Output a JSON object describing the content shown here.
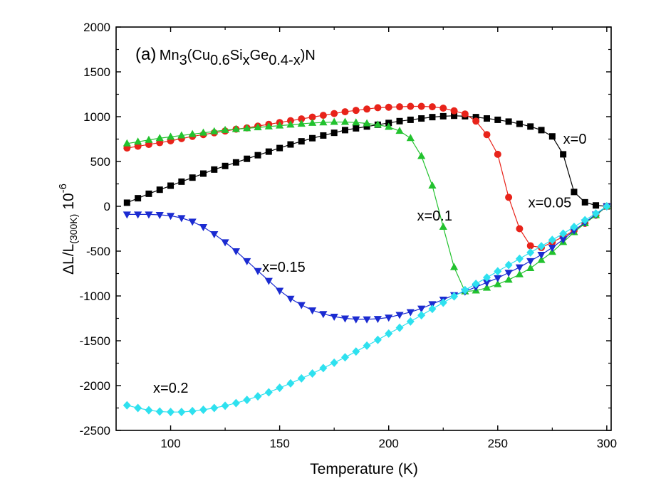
{
  "chart_data": {
    "type": "scatter",
    "title": {
      "label": "(a)",
      "formula": [
        {
          "text": "Mn",
          "shift": "none"
        },
        {
          "text": "3",
          "shift": "sub"
        },
        {
          "text": "(Cu",
          "shift": "none"
        },
        {
          "text": "0.6",
          "shift": "sub"
        },
        {
          "text": "Si",
          "shift": "none"
        },
        {
          "text": "x",
          "shift": "sub"
        },
        {
          "text": "Ge",
          "shift": "none"
        },
        {
          "text": "0.4-x",
          "shift": "sub"
        },
        {
          "text": ")N",
          "shift": "none"
        }
      ]
    },
    "xlabel": "Temperature (K)",
    "ylabel": {
      "main": "ΔL/L",
      "sub": "(300K)",
      "factor": "10",
      "exp": "-6"
    },
    "xlim": [
      75,
      302
    ],
    "ylim": [
      -2500,
      2000
    ],
    "xticks": [
      100,
      150,
      200,
      250,
      300
    ],
    "yticks": [
      -2500,
      -2000,
      -1500,
      -1000,
      -500,
      0,
      500,
      1000,
      1500,
      2000
    ],
    "grid": false,
    "series": [
      {
        "name": "x=0",
        "color": "#000000",
        "marker": "square",
        "label_at": [
          280,
          700
        ],
        "x": [
          80,
          85,
          90,
          95,
          100,
          105,
          110,
          115,
          120,
          125,
          130,
          135,
          140,
          145,
          150,
          155,
          160,
          165,
          170,
          175,
          180,
          185,
          190,
          195,
          200,
          205,
          210,
          215,
          220,
          225,
          230,
          235,
          240,
          245,
          250,
          255,
          260,
          265,
          270,
          275,
          280,
          285,
          290,
          295,
          300
        ],
        "y": [
          40,
          90,
          140,
          185,
          230,
          275,
          320,
          365,
          410,
          450,
          490,
          530,
          570,
          610,
          650,
          690,
          725,
          760,
          790,
          820,
          850,
          870,
          890,
          910,
          930,
          950,
          965,
          980,
          995,
          1005,
          1010,
          1005,
          995,
          980,
          965,
          945,
          920,
          890,
          850,
          780,
          580,
          160,
          45,
          10,
          0
        ]
      },
      {
        "name": "x=0.05",
        "color": "#e8231a",
        "marker": "circle",
        "label_at": [
          264,
          -10
        ],
        "x": [
          80,
          85,
          90,
          95,
          100,
          105,
          110,
          115,
          120,
          125,
          130,
          135,
          140,
          145,
          150,
          155,
          160,
          165,
          170,
          175,
          180,
          185,
          190,
          195,
          200,
          205,
          210,
          215,
          220,
          225,
          230,
          235,
          240,
          245,
          250,
          255,
          260,
          265,
          270,
          275,
          280,
          285,
          290,
          295,
          300
        ],
        "y": [
          650,
          670,
          690,
          710,
          730,
          755,
          780,
          800,
          820,
          840,
          860,
          875,
          895,
          915,
          935,
          955,
          975,
          995,
          1015,
          1035,
          1055,
          1070,
          1085,
          1100,
          1105,
          1110,
          1115,
          1115,
          1110,
          1095,
          1065,
          1030,
          950,
          800,
          580,
          100,
          -250,
          -440,
          -460,
          -400,
          -340,
          -270,
          -190,
          -100,
          0
        ]
      },
      {
        "name": "x=0.1",
        "color": "#22c22e",
        "marker": "triangle-up",
        "label_at": [
          213,
          -160
        ],
        "x": [
          80,
          85,
          90,
          95,
          100,
          105,
          110,
          115,
          120,
          125,
          130,
          135,
          140,
          145,
          150,
          155,
          160,
          165,
          170,
          175,
          180,
          185,
          190,
          195,
          200,
          205,
          210,
          215,
          220,
          225,
          230,
          235,
          240,
          245,
          250,
          255,
          260,
          265,
          270,
          275,
          280,
          285,
          290,
          295,
          300
        ],
        "y": [
          700,
          720,
          740,
          760,
          775,
          790,
          805,
          820,
          835,
          850,
          860,
          870,
          880,
          890,
          900,
          910,
          920,
          930,
          935,
          940,
          940,
          935,
          925,
          910,
          885,
          840,
          760,
          560,
          230,
          -230,
          -680,
          -950,
          -940,
          -910,
          -870,
          -820,
          -760,
          -690,
          -600,
          -510,
          -400,
          -290,
          -190,
          -100,
          0
        ]
      },
      {
        "name": "x=0.15",
        "color": "#1b2bd1",
        "marker": "triangle-down",
        "label_at": [
          142,
          -730
        ],
        "x": [
          80,
          85,
          90,
          95,
          100,
          105,
          110,
          115,
          120,
          125,
          130,
          135,
          140,
          145,
          150,
          155,
          160,
          165,
          170,
          175,
          180,
          185,
          190,
          195,
          200,
          205,
          210,
          215,
          220,
          225,
          230,
          235,
          240,
          245,
          250,
          255,
          260,
          265,
          270,
          275,
          280,
          285,
          290,
          295,
          300
        ],
        "y": [
          -90,
          -90,
          -90,
          -95,
          -105,
          -130,
          -170,
          -230,
          -310,
          -400,
          -500,
          -610,
          -720,
          -830,
          -940,
          -1030,
          -1100,
          -1160,
          -1200,
          -1230,
          -1250,
          -1260,
          -1260,
          -1255,
          -1240,
          -1210,
          -1180,
          -1140,
          -1090,
          -1040,
          -990,
          -950,
          -900,
          -850,
          -800,
          -740,
          -680,
          -610,
          -540,
          -460,
          -370,
          -270,
          -180,
          -90,
          0
        ]
      },
      {
        "name": "x=0.2",
        "color": "#2ee1ef",
        "marker": "diamond",
        "label_at": [
          92,
          -2080
        ],
        "x": [
          80,
          85,
          90,
          95,
          100,
          105,
          110,
          115,
          120,
          125,
          130,
          135,
          140,
          145,
          150,
          155,
          160,
          165,
          170,
          175,
          180,
          185,
          190,
          195,
          200,
          205,
          210,
          215,
          220,
          225,
          230,
          235,
          240,
          245,
          250,
          255,
          260,
          265,
          270,
          275,
          280,
          285,
          290,
          295,
          300
        ],
        "y": [
          -2220,
          -2250,
          -2275,
          -2290,
          -2295,
          -2295,
          -2285,
          -2270,
          -2250,
          -2225,
          -2195,
          -2160,
          -2120,
          -2075,
          -2025,
          -1975,
          -1920,
          -1865,
          -1805,
          -1745,
          -1685,
          -1620,
          -1555,
          -1490,
          -1420,
          -1355,
          -1285,
          -1215,
          -1145,
          -1075,
          -1005,
          -935,
          -865,
          -795,
          -725,
          -655,
          -585,
          -515,
          -445,
          -375,
          -305,
          -230,
          -155,
          -80,
          0
        ]
      }
    ]
  }
}
